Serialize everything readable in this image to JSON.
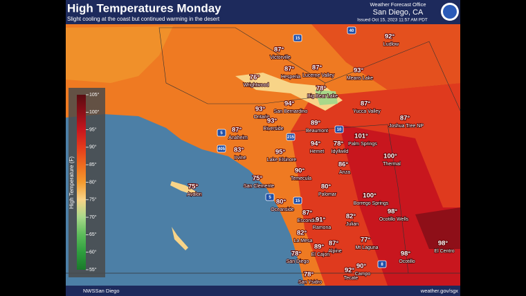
{
  "header": {
    "title": "High Temperatures Monday",
    "subtitle": "Slight cooling at the coast but continued warming in the desert",
    "office": "Weather Forecast Office",
    "location": "San Diego, CA",
    "issued": "Issued Oct 15, 2023 11:57 AM PDT"
  },
  "legend": {
    "title": "High Temperature (F)",
    "ticks": [
      "105°",
      "100°",
      "95°",
      "90°",
      "85°",
      "80°",
      "75°",
      "70°",
      "65°",
      "60°",
      "55°"
    ]
  },
  "highways": [
    "40",
    "15",
    "10",
    "5",
    "215",
    "405",
    "15",
    "5",
    "8"
  ],
  "cities": [
    {
      "name": "Ludlow",
      "temp": "92°"
    },
    {
      "name": "Victorville",
      "temp": "87°"
    },
    {
      "name": "Hesperia",
      "temp": "87°"
    },
    {
      "name": "Lucerne Valley",
      "temp": "87°"
    },
    {
      "name": "Means Lake",
      "temp": "93°"
    },
    {
      "name": "Wrightwood",
      "temp": "76°"
    },
    {
      "name": "Big Bear Lake",
      "temp": "78°"
    },
    {
      "name": "Yucca Valley",
      "temp": "87°"
    },
    {
      "name": "San Bernardino",
      "temp": "94°"
    },
    {
      "name": "Ontario",
      "temp": "93°"
    },
    {
      "name": "Riverside",
      "temp": "93°"
    },
    {
      "name": "Beaumont",
      "temp": "89°"
    },
    {
      "name": "Joshua Tree NP",
      "temp": "87°"
    },
    {
      "name": "Anaheim",
      "temp": "87°"
    },
    {
      "name": "Irvine",
      "temp": "83°"
    },
    {
      "name": "Lake Elsinore",
      "temp": "95°"
    },
    {
      "name": "Hemet",
      "temp": "94°"
    },
    {
      "name": "Idyllwild",
      "temp": "78°"
    },
    {
      "name": "Palm Springs",
      "temp": "101°"
    },
    {
      "name": "Thermal",
      "temp": "100°"
    },
    {
      "name": "Temecula",
      "temp": "90°"
    },
    {
      "name": "Anza",
      "temp": "86°"
    },
    {
      "name": "San Clemente",
      "temp": "75°"
    },
    {
      "name": "Avalon",
      "temp": "75°"
    },
    {
      "name": "Palomar",
      "temp": "80°"
    },
    {
      "name": "Oceanside",
      "temp": "80°"
    },
    {
      "name": "Borrego Springs",
      "temp": "100°"
    },
    {
      "name": "Escondido",
      "temp": "87°"
    },
    {
      "name": "Ocotillo Wells",
      "temp": "98°"
    },
    {
      "name": "Ramona",
      "temp": "91°"
    },
    {
      "name": "Julian",
      "temp": "82°"
    },
    {
      "name": "La Mesa",
      "temp": "82°"
    },
    {
      "name": "Alpine",
      "temp": "87°"
    },
    {
      "name": "Mt Laguna",
      "temp": "77°"
    },
    {
      "name": "El Cajon",
      "temp": "89°"
    },
    {
      "name": "San Diego",
      "temp": "78°"
    },
    {
      "name": "El Centro",
      "temp": "98°"
    },
    {
      "name": "Ocotillo",
      "temp": "98°"
    },
    {
      "name": "Campo",
      "temp": "90°"
    },
    {
      "name": "Tecate",
      "temp": "92°"
    },
    {
      "name": "San Ysidro",
      "temp": "78°"
    }
  ],
  "footer": {
    "social": "NWSSan Diego",
    "url": "weather.gov/sgx"
  }
}
